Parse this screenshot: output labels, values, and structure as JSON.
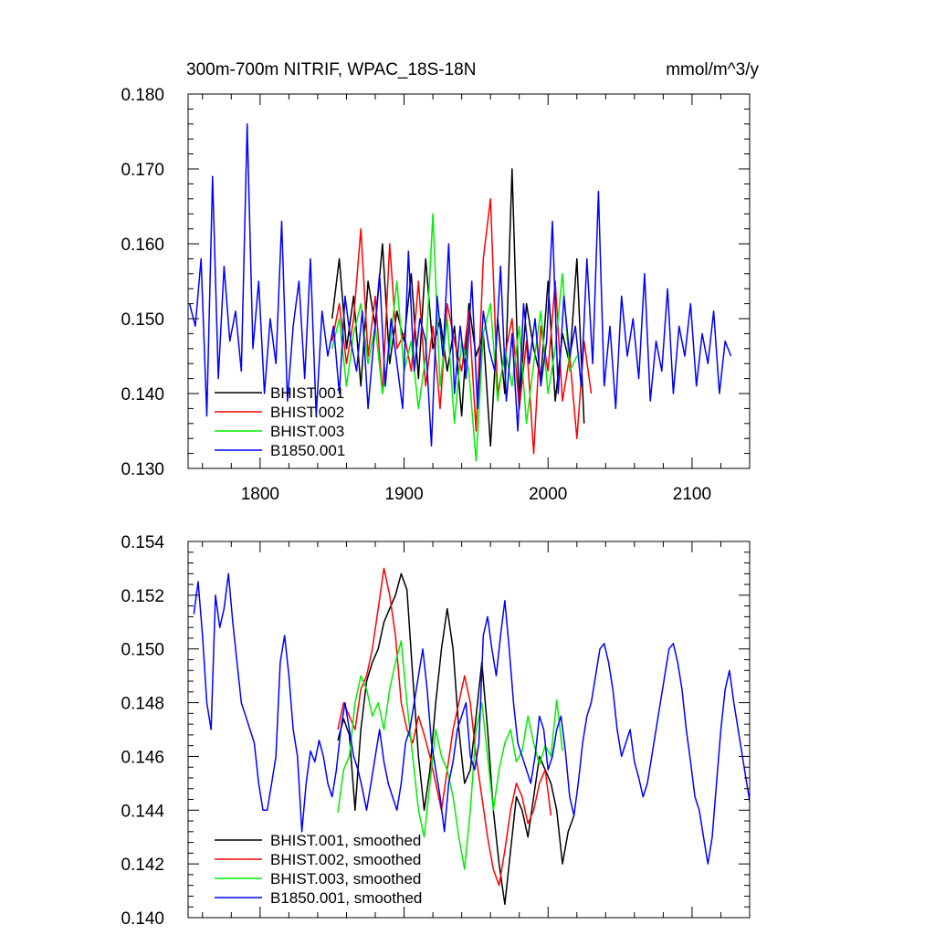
{
  "chart_data": [
    {
      "type": "line",
      "title": "300m-700m NITRIF, WPAC_18S-18N",
      "units": "mmol/m^3/y",
      "xlim": [
        1750,
        2140
      ],
      "ylim": [
        0.13,
        0.18
      ],
      "xticks": [
        1800,
        1900,
        2000,
        2100
      ],
      "xtick_labels": [
        "1800",
        "1900",
        "2000",
        "2100"
      ],
      "yticks": [
        0.13,
        0.14,
        0.15,
        0.16,
        0.17,
        0.18
      ],
      "ytick_labels": [
        "0.130",
        "0.140",
        "0.150",
        "0.160",
        "0.170",
        "0.180"
      ],
      "legend_position": "lower-left",
      "series": [
        {
          "name": "BHIST.001",
          "color": "#000000",
          "x_start": 1850,
          "step": 5,
          "values": [
            0.15,
            0.158,
            0.146,
            0.153,
            0.141,
            0.155,
            0.149,
            0.16,
            0.144,
            0.151,
            0.147,
            0.156,
            0.142,
            0.158,
            0.146,
            0.15,
            0.143,
            0.149,
            0.137,
            0.152,
            0.145,
            0.148,
            0.133,
            0.15,
            0.14,
            0.17,
            0.138,
            0.152,
            0.146,
            0.142,
            0.155,
            0.139,
            0.148,
            0.144,
            0.158,
            0.136
          ]
        },
        {
          "name": "BHIST.002",
          "color": "#ff0000",
          "x_start": 1850,
          "step": 5,
          "values": [
            0.147,
            0.152,
            0.144,
            0.15,
            0.162,
            0.145,
            0.153,
            0.14,
            0.16,
            0.146,
            0.148,
            0.143,
            0.155,
            0.141,
            0.149,
            0.138,
            0.152,
            0.147,
            0.143,
            0.151,
            0.135,
            0.158,
            0.166,
            0.14,
            0.145,
            0.15,
            0.138,
            0.147,
            0.132,
            0.149,
            0.143,
            0.155,
            0.139,
            0.145,
            0.134,
            0.147,
            0.14
          ]
        },
        {
          "name": "BHIST.003",
          "color": "#00ee00",
          "x_start": 1850,
          "step": 5,
          "values": [
            0.146,
            0.15,
            0.141,
            0.148,
            0.152,
            0.144,
            0.149,
            0.14,
            0.146,
            0.155,
            0.143,
            0.147,
            0.138,
            0.145,
            0.164,
            0.141,
            0.15,
            0.136,
            0.147,
            0.143,
            0.131,
            0.148,
            0.152,
            0.139,
            0.146,
            0.141,
            0.149,
            0.136,
            0.144,
            0.151,
            0.14,
            0.146,
            0.156,
            0.143,
            0.145
          ]
        },
        {
          "name": "B1850.001",
          "color": "#0000ff",
          "x_start": 1751,
          "step": 4,
          "values": [
            0.152,
            0.149,
            0.158,
            0.137,
            0.169,
            0.142,
            0.157,
            0.147,
            0.151,
            0.143,
            0.176,
            0.146,
            0.155,
            0.14,
            0.15,
            0.144,
            0.163,
            0.139,
            0.149,
            0.155,
            0.142,
            0.158,
            0.137,
            0.151,
            0.145,
            0.149,
            0.14,
            0.153,
            0.147,
            0.143,
            0.151,
            0.138,
            0.147,
            0.156,
            0.141,
            0.15,
            0.144,
            0.138,
            0.159,
            0.143,
            0.15,
            0.147,
            0.133,
            0.153,
            0.145,
            0.16,
            0.14,
            0.149,
            0.142,
            0.155,
            0.138,
            0.151,
            0.146,
            0.143,
            0.157,
            0.139,
            0.148,
            0.135,
            0.152,
            0.144,
            0.15,
            0.141,
            0.147,
            0.163,
            0.14,
            0.153,
            0.145,
            0.149,
            0.141,
            0.158,
            0.144,
            0.167,
            0.141,
            0.149,
            0.138,
            0.153,
            0.145,
            0.15,
            0.142,
            0.156,
            0.139,
            0.147,
            0.143,
            0.154,
            0.14,
            0.149,
            0.145,
            0.152,
            0.141,
            0.148,
            0.144,
            0.151,
            0.14,
            0.147,
            0.145
          ]
        }
      ]
    },
    {
      "type": "line",
      "xlim": [
        1750,
        2140
      ],
      "ylim": [
        0.14,
        0.154
      ],
      "xticks": [
        1800,
        1900,
        2000,
        2100
      ],
      "yticks": [
        0.14,
        0.142,
        0.144,
        0.146,
        0.148,
        0.15,
        0.152,
        0.154
      ],
      "ytick_labels": [
        "0.140",
        "0.142",
        "0.144",
        "0.146",
        "0.148",
        "0.150",
        "0.152",
        "0.154"
      ],
      "legend_position": "lower-left",
      "series": [
        {
          "name": "BHIST.001, smoothed",
          "color": "#000000",
          "x_start": 1854,
          "step": 4,
          "values": [
            0.1466,
            0.1474,
            0.1468,
            0.144,
            0.147,
            0.1488,
            0.1495,
            0.15,
            0.151,
            0.1515,
            0.152,
            0.1528,
            0.1522,
            0.149,
            0.146,
            0.144,
            0.1455,
            0.148,
            0.15,
            0.1515,
            0.15,
            0.147,
            0.145,
            0.1455,
            0.1475,
            0.1495,
            0.147,
            0.144,
            0.142,
            0.1405,
            0.1425,
            0.1445,
            0.144,
            0.143,
            0.1445,
            0.146,
            0.1455,
            0.145,
            0.144,
            0.142,
            0.1432,
            0.1438
          ]
        },
        {
          "name": "BHIST.002, smoothed",
          "color": "#ff0000",
          "x_start": 1854,
          "step": 4,
          "values": [
            0.147,
            0.148,
            0.1475,
            0.147,
            0.1485,
            0.149,
            0.15,
            0.1515,
            0.153,
            0.152,
            0.1505,
            0.148,
            0.147,
            0.1465,
            0.1475,
            0.1468,
            0.146,
            0.145,
            0.144,
            0.1455,
            0.147,
            0.148,
            0.149,
            0.148,
            0.146,
            0.1445,
            0.143,
            0.1418,
            0.1412,
            0.1425,
            0.144,
            0.145,
            0.1445,
            0.1435,
            0.144,
            0.145,
            0.1455,
            0.1438
          ]
        },
        {
          "name": "BHIST.003, smoothed",
          "color": "#00ee00",
          "x_start": 1854,
          "step": 4,
          "values": [
            0.1439,
            0.1455,
            0.146,
            0.148,
            0.149,
            0.1485,
            0.1475,
            0.148,
            0.147,
            0.1485,
            0.1495,
            0.1503,
            0.148,
            0.146,
            0.144,
            0.143,
            0.145,
            0.147,
            0.146,
            0.1455,
            0.1445,
            0.143,
            0.1418,
            0.144,
            0.147,
            0.148,
            0.146,
            0.144,
            0.1455,
            0.1465,
            0.147,
            0.1458,
            0.1462,
            0.1475,
            0.1465,
            0.1457,
            0.1464,
            0.146,
            0.1481,
            0.1462
          ]
        },
        {
          "name": "B1850.001, smoothed",
          "color": "#0000ff",
          "x_start": 1754,
          "step": 3,
          "values": [
            0.1513,
            0.1525,
            0.1505,
            0.148,
            0.147,
            0.152,
            0.1508,
            0.1515,
            0.1528,
            0.151,
            0.1495,
            0.148,
            0.1475,
            0.147,
            0.1465,
            0.145,
            0.144,
            0.144,
            0.145,
            0.146,
            0.1495,
            0.1505,
            0.149,
            0.147,
            0.146,
            0.1432,
            0.145,
            0.1462,
            0.1458,
            0.1466,
            0.146,
            0.145,
            0.1445,
            0.1455,
            0.147,
            0.148,
            0.147,
            0.146,
            0.1455,
            0.1448,
            0.144,
            0.145,
            0.146,
            0.147,
            0.1458,
            0.145,
            0.1445,
            0.144,
            0.145,
            0.1465,
            0.147,
            0.148,
            0.149,
            0.15,
            0.1485,
            0.1465,
            0.1455,
            0.1445,
            0.1432,
            0.145,
            0.1458,
            0.147,
            0.1475,
            0.148,
            0.146,
            0.1455,
            0.1465,
            0.1505,
            0.1512,
            0.15,
            0.149,
            0.1505,
            0.1518,
            0.15,
            0.148,
            0.1465,
            0.146,
            0.1455,
            0.145,
            0.146,
            0.1475,
            0.147,
            0.1455,
            0.146,
            0.147,
            0.1475,
            0.1462,
            0.1445,
            0.1438,
            0.145,
            0.1465,
            0.1475,
            0.148,
            0.149,
            0.15,
            0.1502,
            0.1495,
            0.1485,
            0.147,
            0.146,
            0.1465,
            0.147,
            0.1458,
            0.1452,
            0.1445,
            0.145,
            0.146,
            0.147,
            0.148,
            0.149,
            0.15,
            0.1502,
            0.1495,
            0.1485,
            0.147,
            0.1458,
            0.1445,
            0.144,
            0.143,
            0.142,
            0.143,
            0.145,
            0.147,
            0.1485,
            0.1492,
            0.148,
            0.147,
            0.146,
            0.145,
            0.144,
            0.1445
          ]
        }
      ]
    }
  ]
}
